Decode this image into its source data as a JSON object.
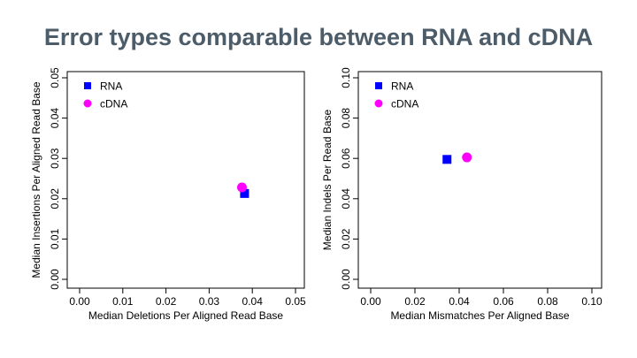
{
  "title": "Error types comparable between RNA and cDNA",
  "colors": {
    "rna": "#0000ff",
    "cdna": "#ff00ff",
    "title": "#4c5c68"
  },
  "chart_data": [
    {
      "type": "scatter",
      "xlabel": "Median Deletions Per Aligned Read Base",
      "ylabel": "Median Insertions Per Aligned Read Base",
      "xlim": [
        0,
        0.05
      ],
      "ylim": [
        0,
        0.05
      ],
      "xticks": [
        "0.00",
        "0.01",
        "0.02",
        "0.03",
        "0.04",
        "0.05"
      ],
      "yticks": [
        "0.00",
        "0.01",
        "0.02",
        "0.03",
        "0.04",
        "0.05"
      ],
      "legend_position": "top-left",
      "grid": false,
      "series": [
        {
          "name": "RNA",
          "marker": "square",
          "color": "#0000ff",
          "points": [
            [
              0.0382,
              0.0213
            ]
          ]
        },
        {
          "name": "cDNA",
          "marker": "circle",
          "color": "#ff00ff",
          "points": [
            [
              0.0376,
              0.0228
            ]
          ]
        }
      ]
    },
    {
      "type": "scatter",
      "xlabel": "Median Mismatches Per Aligned Base",
      "ylabel": "Median Indels Per Read Base",
      "xlim": [
        0,
        0.1
      ],
      "ylim": [
        0,
        0.1
      ],
      "xticks": [
        "0.00",
        "0.02",
        "0.04",
        "0.06",
        "0.08",
        "0.10"
      ],
      "yticks": [
        "0.00",
        "0.02",
        "0.04",
        "0.06",
        "0.08",
        "0.10"
      ],
      "legend_position": "top-left",
      "grid": false,
      "series": [
        {
          "name": "RNA",
          "marker": "square",
          "color": "#0000ff",
          "points": [
            [
              0.0345,
              0.0595
            ]
          ]
        },
        {
          "name": "cDNA",
          "marker": "circle",
          "color": "#ff00ff",
          "points": [
            [
              0.0435,
              0.0605
            ]
          ]
        }
      ]
    }
  ]
}
